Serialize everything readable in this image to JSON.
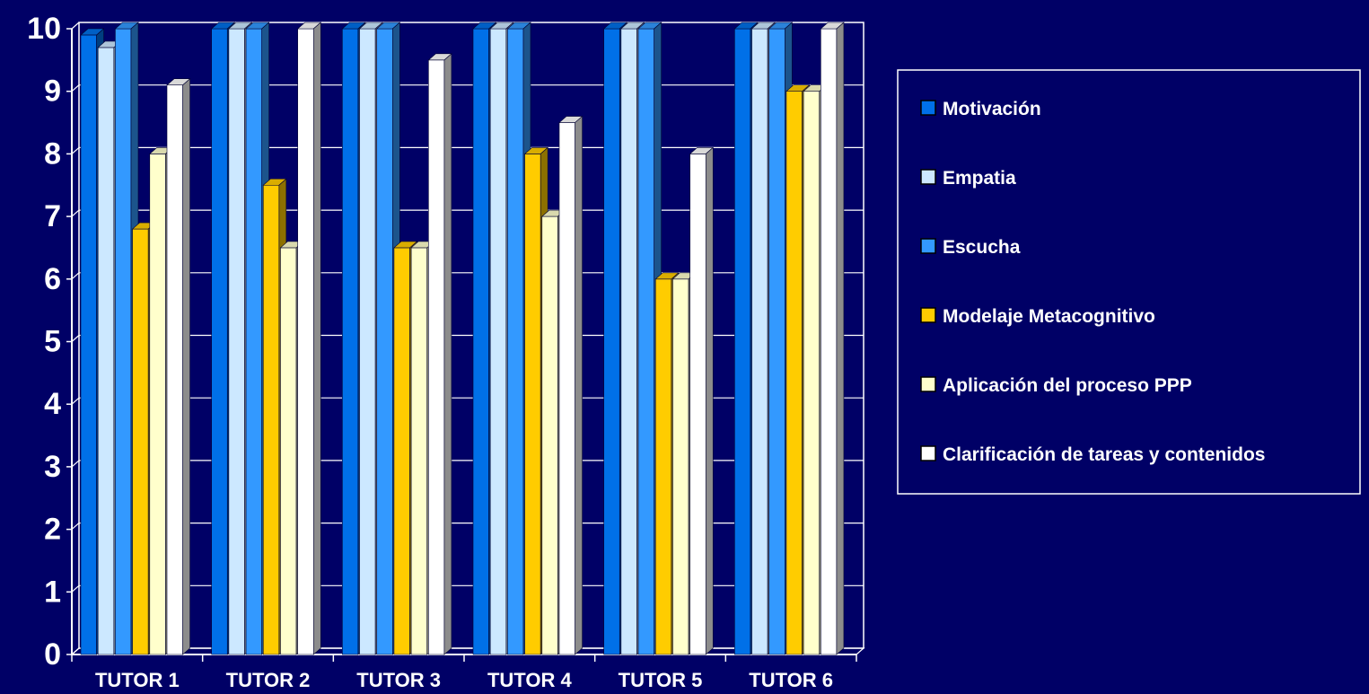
{
  "chart_data": {
    "type": "bar",
    "title": "",
    "xlabel": "",
    "ylabel": "",
    "categories": [
      "TUTOR 1",
      "TUTOR 2",
      "TUTOR 3",
      "TUTOR 4",
      "TUTOR 5",
      "TUTOR 6"
    ],
    "ylim": [
      0,
      10
    ],
    "yticks": [
      "0",
      "1",
      "2",
      "3",
      "4",
      "5",
      "6",
      "7",
      "8",
      "9",
      "10"
    ],
    "grid": true,
    "legend_position": "right",
    "series": [
      {
        "name": "Motivación",
        "color": "#0070E8",
        "values": [
          9.9,
          10,
          10,
          10,
          10,
          10
        ]
      },
      {
        "name": "Empatia",
        "color": "#CCE8FF",
        "values": [
          9.7,
          10,
          10,
          10,
          10,
          10
        ]
      },
      {
        "name": "Escucha",
        "color": "#3399FF",
        "values": [
          10,
          10,
          10,
          10,
          10,
          10
        ]
      },
      {
        "name": "Modelaje Metacognitivo",
        "color": "#FFCC00",
        "values": [
          6.8,
          7.5,
          6.5,
          8,
          6,
          9
        ]
      },
      {
        "name": "Aplicación del proceso PPP",
        "color": "#FFFFCC",
        "values": [
          8,
          6.5,
          6.5,
          7,
          6,
          9
        ]
      },
      {
        "name": "Clarificación de tareas y contenidos",
        "color": "#FFFFFF",
        "values": [
          9.1,
          10,
          9.5,
          8.5,
          8,
          10
        ]
      }
    ]
  }
}
